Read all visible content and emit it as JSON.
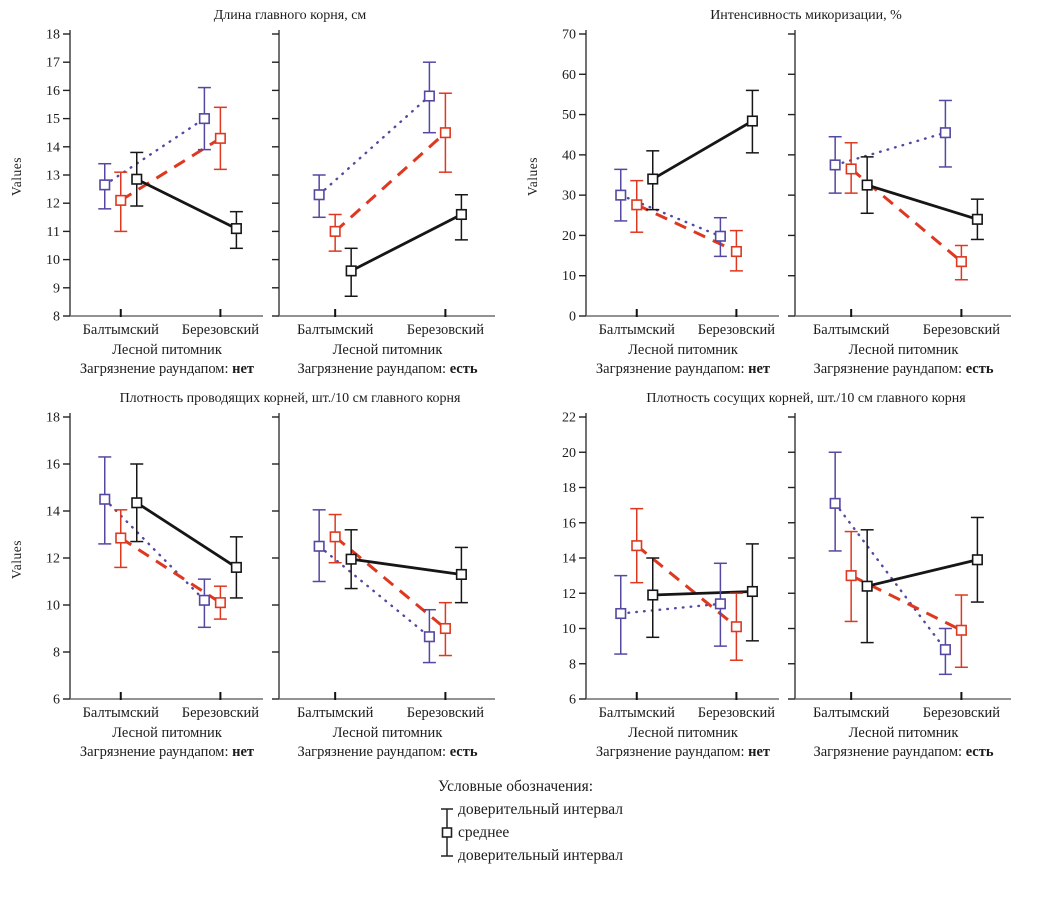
{
  "figure": {
    "y_axis_label": "Values",
    "x_axis_line1": "Лесной питомник",
    "contamination_prefix": "Загрязнение раундапом:",
    "categories": [
      "Балтымский",
      "Березовский"
    ]
  },
  "legend": {
    "header": "Условные обозначения:",
    "items": [
      "доверительный интервал",
      "среднее",
      "доверительный интервал"
    ]
  },
  "colors": {
    "purple": "#5348a2",
    "red": "#de3820",
    "black": "#161616",
    "axis": "#444444",
    "x_axis": "#6e6e6e"
  },
  "chart_data": [
    {
      "type": "line",
      "title": "Длина главного корня, см",
      "ylabel": "Values",
      "ylim": [
        8,
        18
      ],
      "ytick_step": 1,
      "grid": false,
      "categories": [
        "Балтымский",
        "Березовский"
      ],
      "subpanels": [
        {
          "contamination": "нет",
          "series": [
            {
              "style": "dotted",
              "color_key": "purple",
              "means": [
                12.65,
                15.0
              ],
              "ci_low": [
                11.8,
                13.9
              ],
              "ci_high": [
                13.4,
                16.1
              ]
            },
            {
              "style": "dashed",
              "color_key": "red",
              "means": [
                12.1,
                14.3
              ],
              "ci_low": [
                11.0,
                13.2
              ],
              "ci_high": [
                13.1,
                15.4
              ]
            },
            {
              "style": "solid",
              "color_key": "black",
              "means": [
                12.85,
                11.1
              ],
              "ci_low": [
                11.9,
                10.4
              ],
              "ci_high": [
                13.8,
                11.7
              ]
            }
          ]
        },
        {
          "contamination": "есть",
          "series": [
            {
              "style": "dotted",
              "color_key": "purple",
              "means": [
                12.3,
                15.8
              ],
              "ci_low": [
                11.5,
                14.5
              ],
              "ci_high": [
                13.0,
                17.0
              ]
            },
            {
              "style": "dashed",
              "color_key": "red",
              "means": [
                11.0,
                14.5
              ],
              "ci_low": [
                10.3,
                13.1
              ],
              "ci_high": [
                11.6,
                15.9
              ]
            },
            {
              "style": "solid",
              "color_key": "black",
              "means": [
                9.6,
                11.6
              ],
              "ci_low": [
                8.7,
                10.7
              ],
              "ci_high": [
                10.4,
                12.3
              ]
            }
          ]
        }
      ]
    },
    {
      "type": "line",
      "title": "Интенсивность микоризации, %",
      "ylabel": "Values",
      "ylim": [
        0,
        70
      ],
      "ytick_step": 10,
      "grid": false,
      "categories": [
        "Балтымский",
        "Березовский"
      ],
      "subpanels": [
        {
          "contamination": "нет",
          "series": [
            {
              "style": "dotted",
              "color_key": "purple",
              "means": [
                30.0,
                19.8
              ],
              "ci_low": [
                23.6,
                14.8
              ],
              "ci_high": [
                36.4,
                24.4
              ]
            },
            {
              "style": "dashed",
              "color_key": "red",
              "means": [
                27.6,
                16.0
              ],
              "ci_low": [
                20.8,
                11.2
              ],
              "ci_high": [
                33.6,
                21.2
              ]
            },
            {
              "style": "solid",
              "color_key": "black",
              "means": [
                34.0,
                48.4
              ],
              "ci_low": [
                26.4,
                40.5
              ],
              "ci_high": [
                41.0,
                56.0
              ]
            }
          ]
        },
        {
          "contamination": "есть",
          "series": [
            {
              "style": "dotted",
              "color_key": "purple",
              "means": [
                37.5,
                45.5
              ],
              "ci_low": [
                30.5,
                37.0
              ],
              "ci_high": [
                44.5,
                53.5
              ]
            },
            {
              "style": "dashed",
              "color_key": "red",
              "means": [
                36.5,
                13.5
              ],
              "ci_low": [
                30.5,
                9.0
              ],
              "ci_high": [
                43.0,
                17.5
              ]
            },
            {
              "style": "solid",
              "color_key": "black",
              "means": [
                32.5,
                24.0
              ],
              "ci_low": [
                25.5,
                19.0
              ],
              "ci_high": [
                39.5,
                29.0
              ]
            }
          ]
        }
      ]
    },
    {
      "type": "line",
      "title": "Плотность проводящих корней, шт./10 см главного корня",
      "ylabel": "Values",
      "ylim": [
        6,
        18
      ],
      "ytick_step": 2,
      "grid": false,
      "categories": [
        "Балтымский",
        "Березовский"
      ],
      "subpanels": [
        {
          "contamination": "нет",
          "series": [
            {
              "style": "dotted",
              "color_key": "purple",
              "means": [
                14.5,
                10.2
              ],
              "ci_low": [
                12.6,
                9.05
              ],
              "ci_high": [
                16.3,
                11.1
              ]
            },
            {
              "style": "dashed",
              "color_key": "red",
              "means": [
                12.85,
                10.1
              ],
              "ci_low": [
                11.6,
                9.4
              ],
              "ci_high": [
                14.05,
                10.8
              ]
            },
            {
              "style": "solid",
              "color_key": "black",
              "means": [
                14.35,
                11.6
              ],
              "ci_low": [
                12.7,
                10.3
              ],
              "ci_high": [
                16.0,
                12.9
              ]
            }
          ]
        },
        {
          "contamination": "есть",
          "series": [
            {
              "style": "dotted",
              "color_key": "purple",
              "means": [
                12.5,
                8.65
              ],
              "ci_low": [
                11.0,
                7.55
              ],
              "ci_high": [
                14.05,
                9.8
              ]
            },
            {
              "style": "dashed",
              "color_key": "red",
              "means": [
                12.9,
                9.0
              ],
              "ci_low": [
                11.8,
                7.85
              ],
              "ci_high": [
                13.85,
                10.1
              ]
            },
            {
              "style": "solid",
              "color_key": "black",
              "means": [
                11.95,
                11.3
              ],
              "ci_low": [
                10.7,
                10.1
              ],
              "ci_high": [
                13.2,
                12.45
              ]
            }
          ]
        }
      ]
    },
    {
      "type": "line",
      "title": "Плотность сосущих корней, шт./10 см главного корня",
      "ylabel": "",
      "ylim": [
        6,
        22
      ],
      "ytick_step": 2,
      "grid": false,
      "categories": [
        "Балтымский",
        "Березовский"
      ],
      "subpanels": [
        {
          "contamination": "нет",
          "series": [
            {
              "style": "dotted",
              "color_key": "purple",
              "means": [
                10.85,
                11.4
              ],
              "ci_low": [
                8.55,
                9.0
              ],
              "ci_high": [
                13.0,
                13.7
              ]
            },
            {
              "style": "dashed",
              "color_key": "red",
              "means": [
                14.7,
                10.1
              ],
              "ci_low": [
                12.6,
                8.2
              ],
              "ci_high": [
                16.8,
                12.0
              ]
            },
            {
              "style": "solid",
              "color_key": "black",
              "means": [
                11.9,
                12.1
              ],
              "ci_low": [
                9.5,
                9.3
              ],
              "ci_high": [
                14.0,
                14.8
              ]
            }
          ]
        },
        {
          "contamination": "есть",
          "series": [
            {
              "style": "dotted",
              "color_key": "purple",
              "means": [
                17.1,
                8.8
              ],
              "ci_low": [
                14.4,
                7.4
              ],
              "ci_high": [
                20.0,
                10.0
              ]
            },
            {
              "style": "dashed",
              "color_key": "red",
              "means": [
                13.0,
                9.9
              ],
              "ci_low": [
                10.4,
                7.8
              ],
              "ci_high": [
                15.5,
                11.9
              ]
            },
            {
              "style": "solid",
              "color_key": "black",
              "means": [
                12.4,
                13.9
              ],
              "ci_low": [
                9.2,
                11.5
              ],
              "ci_high": [
                15.6,
                16.3
              ]
            }
          ]
        }
      ]
    }
  ]
}
